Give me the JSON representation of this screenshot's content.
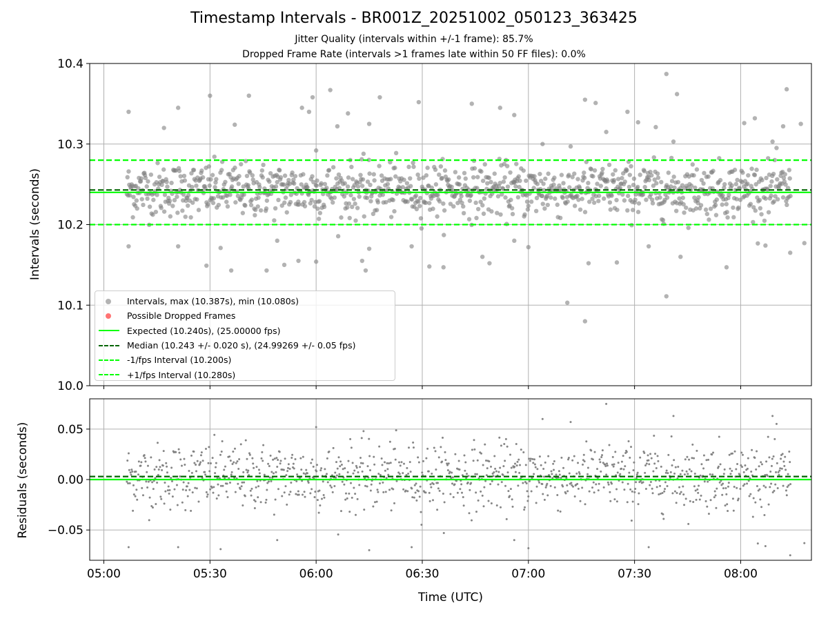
{
  "title": "Timestamp Intervals - BR001Z_20251002_050123_363425",
  "subtitle1": "Jitter Quality (intervals within +/-1 frame): 85.7%",
  "subtitle2": "Dropped Frame Rate (intervals >1 frames late within 50 FF files): 0.0%",
  "colors": {
    "points": "#808080",
    "dropped": "#ff0000",
    "expected": "#00ff00",
    "median": "#006400",
    "bounds": "#00ff00",
    "grid": "#b0b0b0"
  },
  "legend": {
    "intervals": "Intervals, max (10.387s), min (10.080s)",
    "dropped": "Possible Dropped Frames",
    "expected": "Expected (10.240s), (25.00000 fps)",
    "median": "Median (10.243 +/- 0.020 s), (24.99269 +/- 0.05 fps)",
    "minus": "-1/fps Interval (10.200s)",
    "plus": "+1/fps Interval (10.280s)"
  },
  "chart_data": [
    {
      "type": "scatter",
      "panel": "intervals",
      "ylabel": "Intervals (seconds)",
      "ylim": [
        10.0,
        10.4
      ],
      "yticks": [
        10.0,
        10.1,
        10.2,
        10.3,
        10.4
      ],
      "ytick_labels": [
        "10.0",
        "10.1",
        "10.2",
        "10.3",
        "10.4"
      ],
      "xlim_minutes_utc": [
        296,
        500
      ],
      "grid": true,
      "expected": 10.24,
      "median": 10.243,
      "lower_bound": 10.2,
      "upper_bound": 10.28,
      "max": 10.387,
      "min": 10.08,
      "first_point_minute": 306.5,
      "spacing_seconds": 10.24,
      "point_count": 1100,
      "outliers": [
        {
          "t": 307,
          "y": 10.34
        },
        {
          "t": 317,
          "y": 10.32
        },
        {
          "t": 321,
          "y": 10.345
        },
        {
          "t": 330,
          "y": 10.36
        },
        {
          "t": 337,
          "y": 10.324
        },
        {
          "t": 341,
          "y": 10.36
        },
        {
          "t": 346,
          "y": 10.143
        },
        {
          "t": 356,
          "y": 10.345
        },
        {
          "t": 358,
          "y": 10.34
        },
        {
          "t": 359,
          "y": 10.358
        },
        {
          "t": 360,
          "y": 10.292
        },
        {
          "t": 364,
          "y": 10.367
        },
        {
          "t": 366,
          "y": 10.322
        },
        {
          "t": 369,
          "y": 10.338
        },
        {
          "t": 375,
          "y": 10.325
        },
        {
          "t": 378,
          "y": 10.358
        },
        {
          "t": 389,
          "y": 10.352
        },
        {
          "t": 404,
          "y": 10.35
        },
        {
          "t": 412,
          "y": 10.345
        },
        {
          "t": 416,
          "y": 10.336
        },
        {
          "t": 424,
          "y": 10.3
        },
        {
          "t": 436,
          "y": 10.355
        },
        {
          "t": 439,
          "y": 10.351
        },
        {
          "t": 442,
          "y": 10.315
        },
        {
          "t": 448,
          "y": 10.34
        },
        {
          "t": 451,
          "y": 10.327
        },
        {
          "t": 456,
          "y": 10.321
        },
        {
          "t": 459,
          "y": 10.387
        },
        {
          "t": 461,
          "y": 10.303
        },
        {
          "t": 462,
          "y": 10.362
        },
        {
          "t": 481,
          "y": 10.326
        },
        {
          "t": 484,
          "y": 10.332
        },
        {
          "t": 489,
          "y": 10.303
        },
        {
          "t": 492,
          "y": 10.322
        },
        {
          "t": 493,
          "y": 10.368
        },
        {
          "t": 497,
          "y": 10.325
        },
        {
          "t": 307,
          "y": 10.173
        },
        {
          "t": 321,
          "y": 10.173
        },
        {
          "t": 329,
          "y": 10.149
        },
        {
          "t": 333,
          "y": 10.171
        },
        {
          "t": 336,
          "y": 10.143
        },
        {
          "t": 349,
          "y": 10.18
        },
        {
          "t": 351,
          "y": 10.15
        },
        {
          "t": 355,
          "y": 10.155
        },
        {
          "t": 360,
          "y": 10.154
        },
        {
          "t": 373,
          "y": 10.155
        },
        {
          "t": 374,
          "y": 10.143
        },
        {
          "t": 375,
          "y": 10.17
        },
        {
          "t": 387,
          "y": 10.173
        },
        {
          "t": 392,
          "y": 10.148
        },
        {
          "t": 396,
          "y": 10.147
        },
        {
          "t": 407,
          "y": 10.16
        },
        {
          "t": 409,
          "y": 10.152
        },
        {
          "t": 416,
          "y": 10.18
        },
        {
          "t": 420,
          "y": 10.172
        },
        {
          "t": 431,
          "y": 10.103
        },
        {
          "t": 436,
          "y": 10.08
        },
        {
          "t": 437,
          "y": 10.152
        },
        {
          "t": 445,
          "y": 10.153
        },
        {
          "t": 454,
          "y": 10.173
        },
        {
          "t": 459,
          "y": 10.111
        },
        {
          "t": 463,
          "y": 10.16
        },
        {
          "t": 476,
          "y": 10.147
        },
        {
          "t": 487,
          "y": 10.174
        },
        {
          "t": 494,
          "y": 10.165
        },
        {
          "t": 498,
          "y": 10.177
        }
      ]
    },
    {
      "type": "scatter",
      "panel": "residuals",
      "xlabel": "Time (UTC)",
      "ylabel": "Residuals (seconds)",
      "ylim": [
        -0.08,
        0.08
      ],
      "yticks": [
        -0.05,
        0.0,
        0.05
      ],
      "ytick_labels": [
        "−0.05",
        "0.00",
        "0.05"
      ],
      "xlim_minutes_utc": [
        296,
        500
      ],
      "xticks_minutes_utc": [
        300,
        330,
        360,
        390,
        420,
        450,
        480
      ],
      "xtick_labels": [
        "05:00",
        "05:30",
        "06:00",
        "06:30",
        "07:00",
        "07:30",
        "08:00"
      ],
      "grid": true,
      "zero_line": 0.0,
      "median_offset": 0.003
    }
  ]
}
